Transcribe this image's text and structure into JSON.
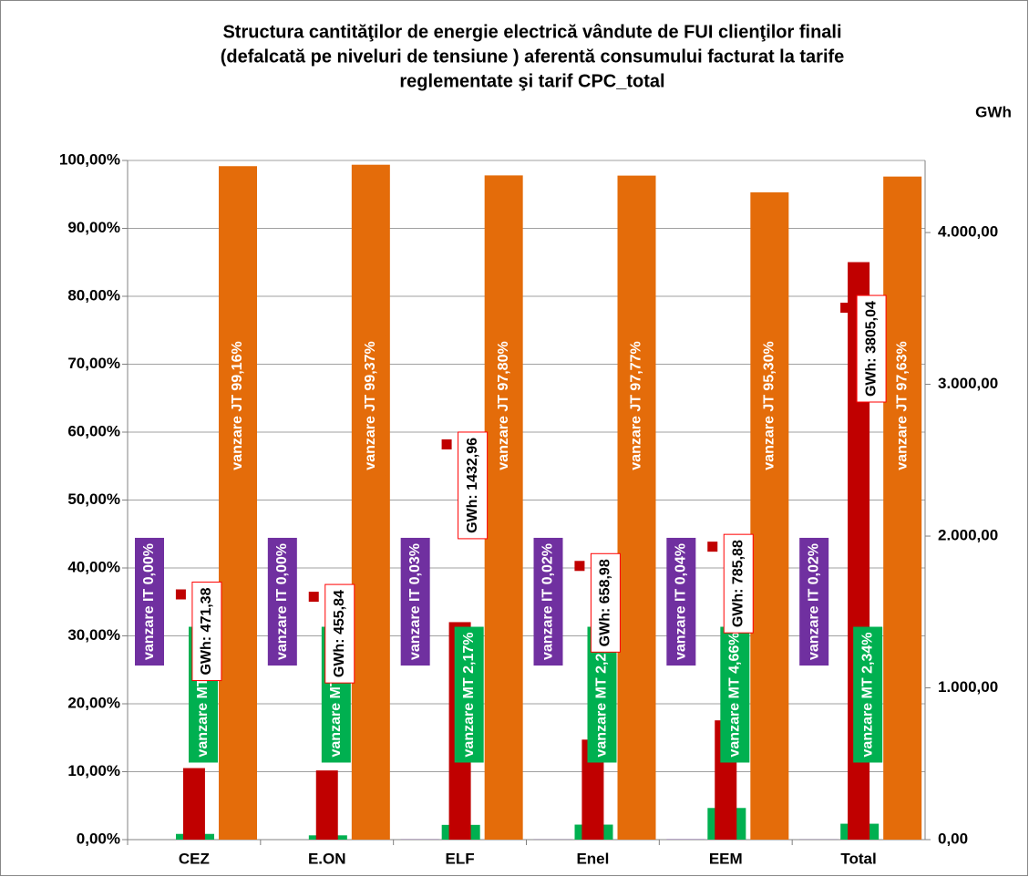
{
  "chart_data": {
    "type": "bar",
    "title": [
      "Structura cantităţilor de energie electrică vândute de FUI clienţilor finali",
      "(defalcată pe niveluri  de  tensiune ) aferentă consumului facturat la tarife",
      "reglementate şi tarif CPC_total"
    ],
    "y2_label": "GWh",
    "categories": [
      "CEZ",
      "E.ON",
      "ELF",
      "Enel",
      "EEM",
      "Total"
    ],
    "series": [
      {
        "name": "IT",
        "color": "#7030a0",
        "values": [
          0.0,
          0.0,
          0.03,
          0.02,
          0.04,
          0.02
        ],
        "value_labels": [
          "vanzare IT 0,00%",
          "vanzare IT 0,00%",
          "vanzare IT 0,03%",
          "vanzare IT 0,02%",
          "vanzare IT 0,04%",
          "vanzare IT 0,02%"
        ]
      },
      {
        "name": "MT",
        "color": "#00b050",
        "values": [
          0.84,
          0.63,
          2.17,
          2.21,
          4.66,
          2.34
        ],
        "value_labels": [
          "vanzare MT 0,84%",
          "vanzare MT 0,63%",
          "vanzare MT 2,17%",
          "vanzare MT 2,21%",
          "vanzare MT 4,66%",
          "vanzare MT 2,34%"
        ]
      },
      {
        "name": "JT",
        "color": "#e46c0a",
        "values": [
          99.16,
          99.37,
          97.8,
          97.77,
          95.3,
          97.63
        ],
        "value_labels": [
          "vanzare JT 99,16%",
          "vanzare JT 99,37%",
          "vanzare JT 97,80%",
          "vanzare JT 97,77%",
          "vanzare JT 95,30%",
          "vanzare JT 97,63%"
        ]
      },
      {
        "name": "GWh",
        "color": "#c00000",
        "axis": "y2",
        "values": [
          471.38,
          455.84,
          1432.96,
          658.98,
          785.88,
          3805.04
        ],
        "value_labels": [
          "GWh: 471,38",
          "GWh: 455,84",
          "GWh: 1432,96",
          "GWh: 658,98",
          "GWh: 785,88",
          "GWh: 3805,04"
        ]
      }
    ],
    "ylim": [
      0,
      100
    ],
    "yticks": [
      {
        "value": 0,
        "label": "0,00%"
      },
      {
        "value": 10,
        "label": "10,00%"
      },
      {
        "value": 20,
        "label": "20,00%"
      },
      {
        "value": 30,
        "label": "30,00%"
      },
      {
        "value": 40,
        "label": "40,00%"
      },
      {
        "value": 50,
        "label": "50,00%"
      },
      {
        "value": 60,
        "label": "60,00%"
      },
      {
        "value": 70,
        "label": "70,00%"
      },
      {
        "value": 80,
        "label": "80,00%"
      },
      {
        "value": 90,
        "label": "90,00%"
      },
      {
        "value": 100,
        "label": "100,00%"
      }
    ],
    "y2lim": [
      0,
      4475
    ],
    "y2ticks": [
      {
        "value": 0,
        "label": "0,00"
      },
      {
        "value": 1000,
        "label": "1.000,00"
      },
      {
        "value": 2000,
        "label": "2.000,00"
      },
      {
        "value": 3000,
        "label": "3.000,00"
      },
      {
        "value": 4000,
        "label": "4.000,00"
      }
    ],
    "grid": true
  }
}
